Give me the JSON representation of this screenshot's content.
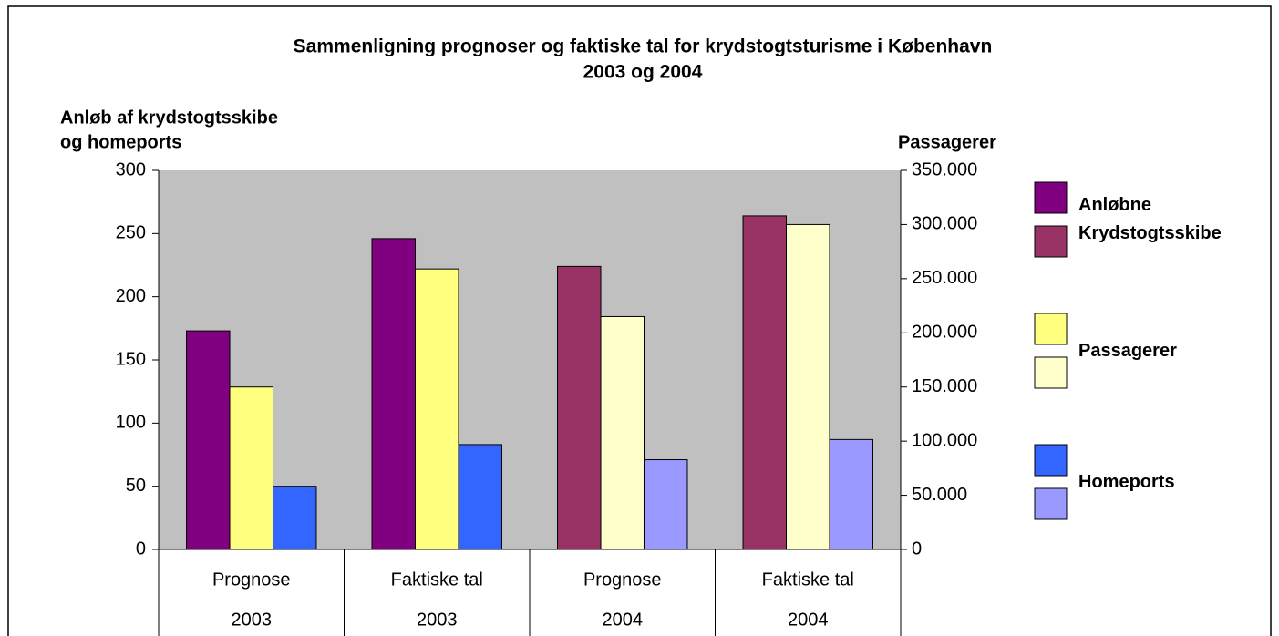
{
  "chart_data": {
    "type": "bar",
    "title": [
      "Sammenligning prognoser og faktiske tal for krydstogtsturisme i København",
      "2003 og 2004"
    ],
    "ylabel": [
      "Anløb af krydstogtsskibe",
      "og homeports"
    ],
    "y2label": "Passagerer",
    "categories": [
      "Prognose",
      "Faktiske tal",
      "Prognose",
      "Faktiske tal"
    ],
    "category_groups": [
      "2003",
      "2003",
      "2004",
      "2004"
    ],
    "series": [
      {
        "name": "Anløbne Krydstogtsskibe",
        "colors": [
          "#800080",
          "#800080",
          "#993366",
          "#993366"
        ],
        "values": [
          173,
          246,
          224,
          264
        ]
      },
      {
        "name": "Passagerer",
        "axis": "y2",
        "colors": [
          "#ffff80",
          "#ffff80",
          "#ffffcc",
          "#ffffcc"
        ],
        "values": [
          150000,
          259000,
          215000,
          300000
        ]
      },
      {
        "name": "Homeports",
        "colors": [
          "#3366ff",
          "#3366ff",
          "#9999ff",
          "#9999ff"
        ],
        "values": [
          50,
          83,
          71,
          87
        ]
      }
    ],
    "ylim": [
      0,
      300
    ],
    "yticks": [
      0,
      50,
      100,
      150,
      200,
      250,
      300
    ],
    "y2lim": [
      0,
      350000
    ],
    "y2ticks": [
      0,
      {
        "value": 50000,
        "label": "50.000"
      },
      {
        "value": 100000,
        "label": "100.000"
      },
      {
        "value": 150000,
        "label": "150.000"
      },
      {
        "value": 200000,
        "label": "200.000"
      },
      {
        "value": 250000,
        "label": "250.000"
      },
      {
        "value": 300000,
        "label": "300.000"
      },
      {
        "value": 350000,
        "label": "350.000"
      }
    ],
    "plot_background": "#c0c0c0"
  }
}
